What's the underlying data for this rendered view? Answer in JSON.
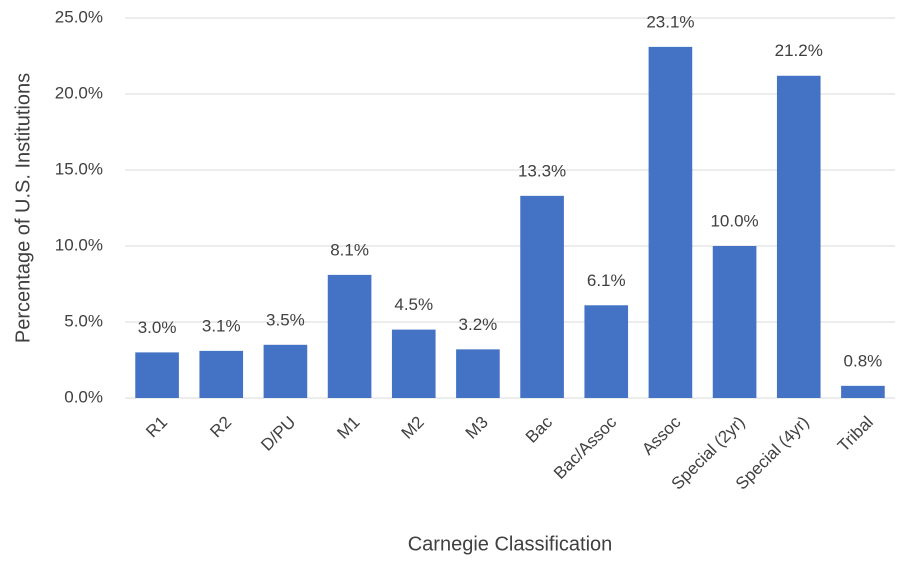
{
  "chart_data": {
    "type": "bar",
    "x_label": "Carnegie Classification",
    "y_label": "Percentage of U.S. Institutions",
    "categories": [
      "R1",
      "R2",
      "D/PU",
      "M1",
      "M2",
      "M3",
      "Bac",
      "Bac/Assoc",
      "Assoc",
      "Special (2yr)",
      "Special (4yr)",
      "Tribal"
    ],
    "values": [
      3.0,
      3.1,
      3.5,
      8.1,
      4.5,
      3.2,
      13.3,
      6.1,
      23.1,
      10.0,
      21.2,
      0.8
    ],
    "value_labels": [
      "3.0%",
      "3.1%",
      "3.5%",
      "8.1%",
      "4.5%",
      "3.2%",
      "13.3%",
      "6.1%",
      "23.1%",
      "10.0%",
      "21.2%",
      "0.8%"
    ],
    "color": "#4472c4",
    "ylim": [
      0,
      25
    ],
    "yticks": [
      {
        "value": 0,
        "label": "0.0%"
      },
      {
        "value": 5,
        "label": "5.0%"
      },
      {
        "value": 10,
        "label": "10.0%"
      },
      {
        "value": 15,
        "label": "15.0%"
      },
      {
        "value": 20,
        "label": "20.0%"
      },
      {
        "value": 25,
        "label": "25.0%"
      }
    ],
    "grid": true
  }
}
